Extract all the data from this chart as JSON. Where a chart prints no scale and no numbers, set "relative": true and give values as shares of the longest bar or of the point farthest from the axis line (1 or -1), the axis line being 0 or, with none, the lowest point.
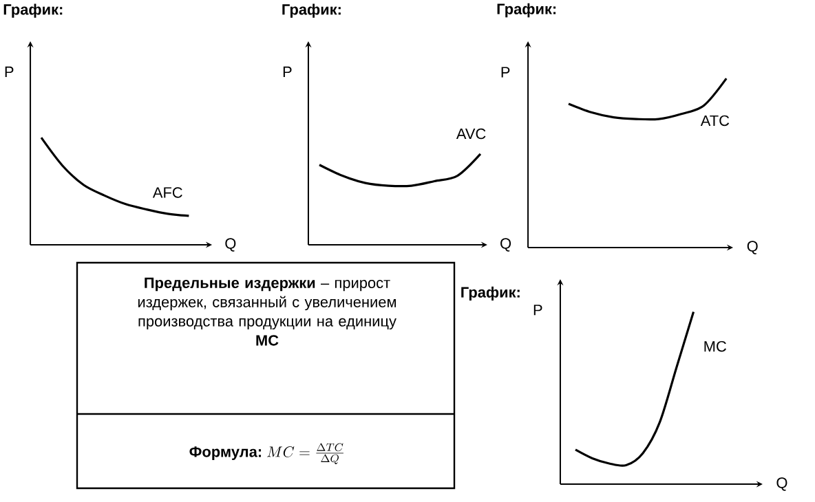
{
  "chart_data": [
    {
      "type": "line",
      "title": "График:",
      "xlabel": "Q",
      "ylabel": "P",
      "relative": true,
      "categories": [
        null,
        null,
        null,
        null,
        null,
        null,
        null,
        null
      ],
      "series": [
        {
          "name": "AFC",
          "color": "#000000",
          "values": [
            1,
            0.74,
            0.56,
            0.46,
            0.38,
            0.33,
            0.29,
            0.27
          ]
        }
      ]
    },
    {
      "type": "line",
      "title": "График:",
      "xlabel": "Q",
      "ylabel": "P",
      "relative": true,
      "categories": [
        null,
        null,
        null,
        null,
        null,
        null,
        null,
        null
      ],
      "series": [
        {
          "name": "AVC",
          "color": "#000000",
          "values": [
            0.88,
            0.76,
            0.68,
            0.65,
            0.65,
            0.7,
            0.76,
            1
          ]
        }
      ]
    },
    {
      "type": "line",
      "title": "График:",
      "xlabel": "Q",
      "ylabel": "P",
      "relative": true,
      "categories": [
        null,
        null,
        null,
        null,
        null,
        null,
        null,
        null
      ],
      "series": [
        {
          "name": "ATC",
          "color": "#000000",
          "values": [
            0.85,
            0.8,
            0.77,
            0.76,
            0.76,
            0.79,
            0.84,
            1
          ]
        }
      ]
    },
    {
      "type": "other",
      "annotations": [
        "**Предельные издержки** – прирост издержек, связанный с увеличением производства продукции на единицу",
        "MC",
        "Формула:",
        "MC=\\frac{\\Delta TC}{\\Delta Q}"
      ]
    },
    {
      "type": "line",
      "title": "График:",
      "xlabel": "Q",
      "ylabel": "P",
      "relative": true,
      "categories": [
        null,
        null,
        null,
        null,
        null,
        null,
        null,
        null
      ],
      "series": [
        {
          "name": "MC",
          "color": "#000000",
          "values": [
            0.2,
            0.15,
            0.12,
            0.11,
            0.18,
            0.36,
            0.68,
            1
          ]
        }
      ]
    }
  ]
}
